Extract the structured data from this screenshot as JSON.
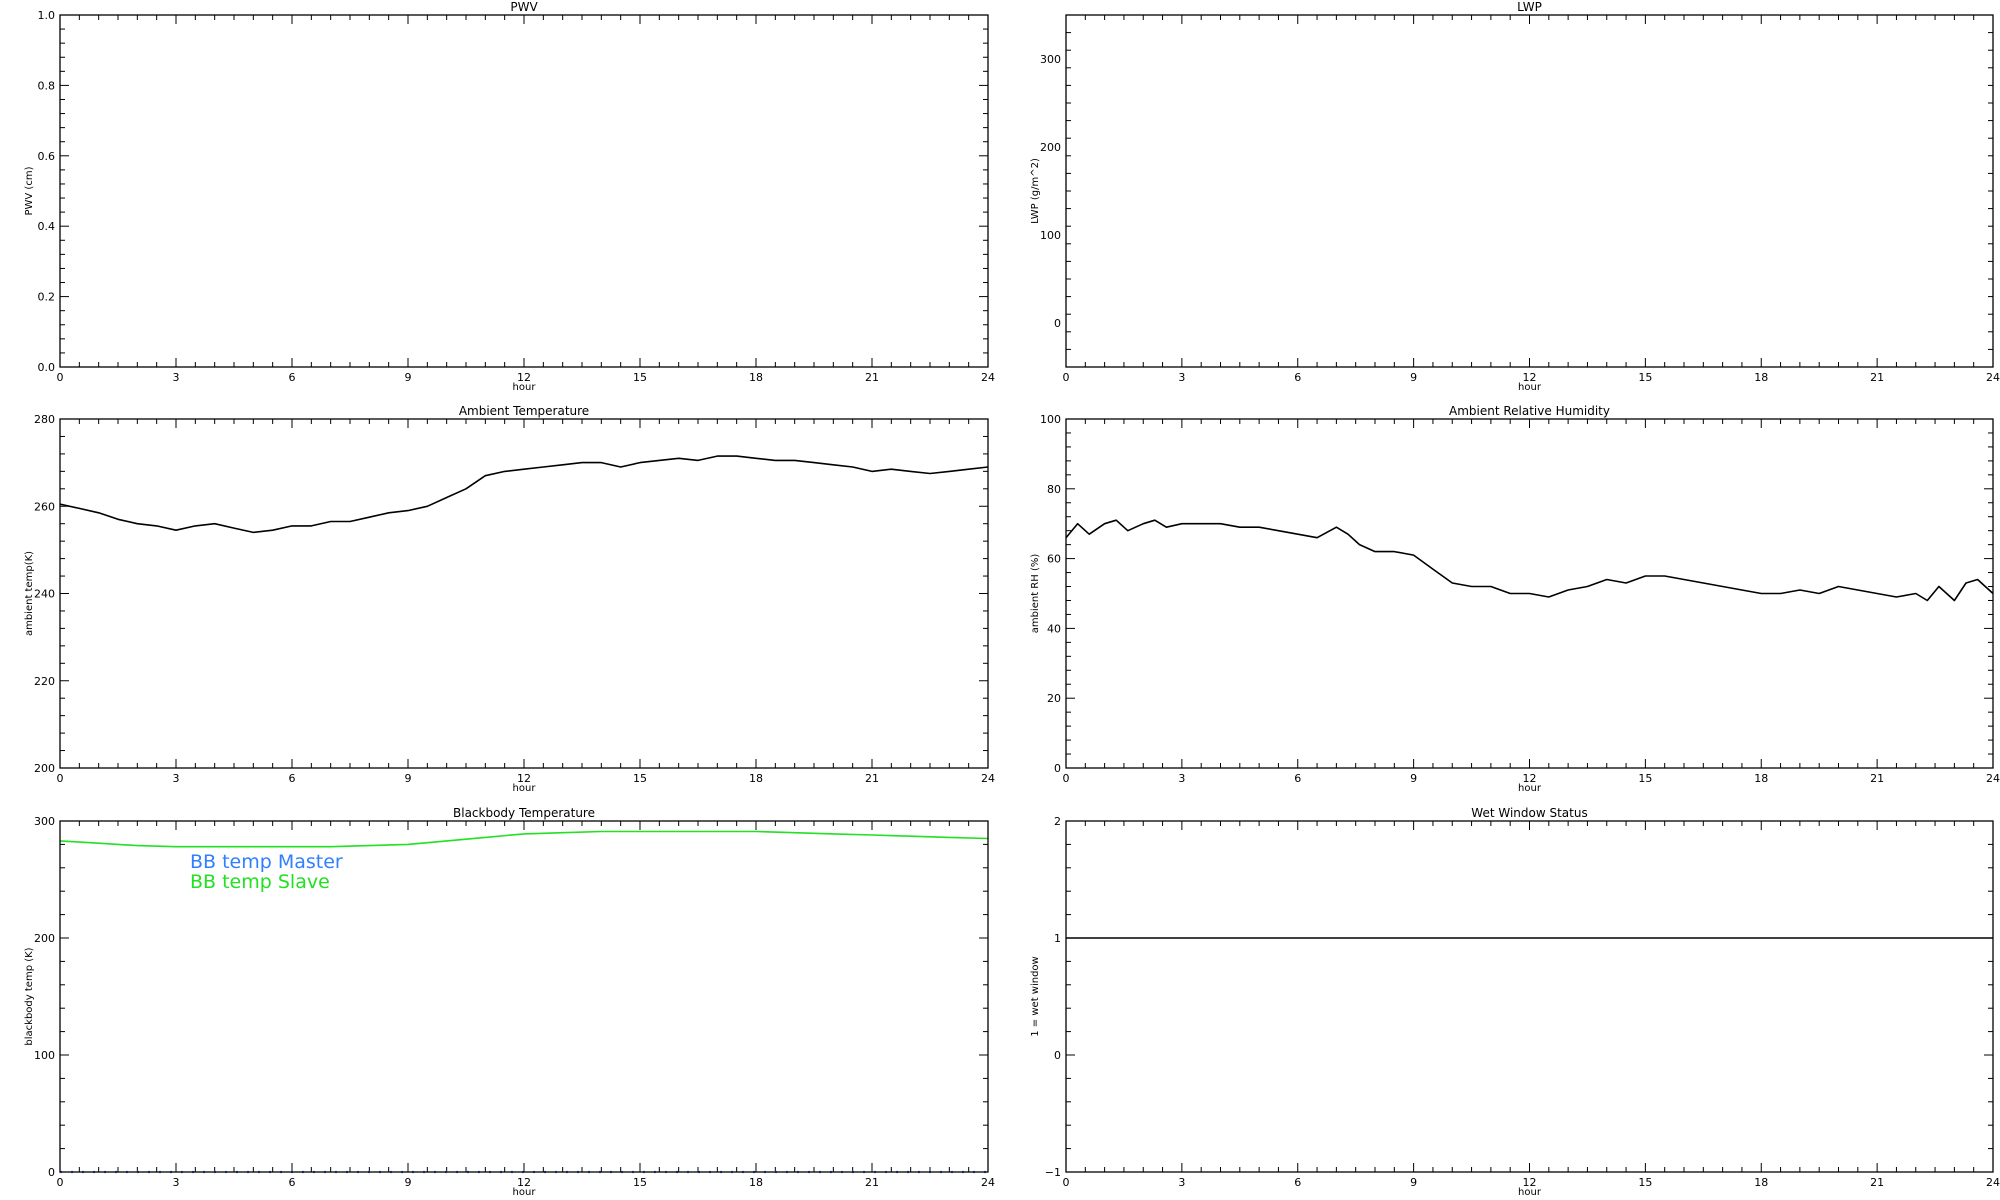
{
  "chart_data": [
    {
      "id": "pwv",
      "type": "line",
      "title": "PWV",
      "xlabel": "hour",
      "ylabel": "PWV (cm)",
      "xlim": [
        0,
        24
      ],
      "ylim": [
        0.0,
        1.0
      ],
      "xticks": [
        0,
        3,
        6,
        9,
        12,
        15,
        18,
        21,
        24
      ],
      "yticks": [
        0.0,
        0.2,
        0.4,
        0.6,
        0.8,
        1.0
      ],
      "ytick_labels": [
        "0.0",
        "0.2",
        "0.4",
        "0.6",
        "0.8",
        "1.0"
      ],
      "series": []
    },
    {
      "id": "lwp",
      "type": "line",
      "title": "LWP",
      "xlabel": "hour",
      "ylabel": "LWP (g/m^2)",
      "xlim": [
        0,
        24
      ],
      "ylim": [
        -50,
        350
      ],
      "xticks": [
        0,
        3,
        6,
        9,
        12,
        15,
        18,
        21,
        24
      ],
      "yticks": [
        0,
        100,
        200,
        300
      ],
      "ytick_labels": [
        "0",
        "100",
        "200",
        "300"
      ],
      "series": []
    },
    {
      "id": "ambient_temp",
      "type": "line",
      "title": "Ambient Temperature",
      "xlabel": "hour",
      "ylabel": "ambient temp(K)",
      "xlim": [
        0,
        24
      ],
      "ylim": [
        200,
        280
      ],
      "xticks": [
        0,
        3,
        6,
        9,
        12,
        15,
        18,
        21,
        24
      ],
      "yticks": [
        200,
        220,
        240,
        260,
        280
      ],
      "ytick_labels": [
        "200",
        "220",
        "240",
        "260",
        "280"
      ],
      "series": [
        {
          "color": "#000000",
          "x": [
            0,
            0.5,
            1,
            1.5,
            2,
            2.5,
            3,
            3.5,
            4,
            4.5,
            5,
            5.5,
            6,
            6.5,
            7,
            7.5,
            8,
            8.5,
            9,
            9.5,
            10,
            10.5,
            11,
            11.5,
            12,
            12.5,
            13,
            13.5,
            14,
            14.5,
            15,
            15.5,
            16,
            16.5,
            17,
            17.5,
            18,
            18.5,
            19,
            19.5,
            20,
            20.5,
            21,
            21.5,
            22,
            22.5,
            23,
            23.5,
            24
          ],
          "y": [
            260.5,
            259.5,
            258.5,
            257,
            256,
            255.5,
            254.5,
            255.5,
            256,
            255,
            254,
            254.5,
            255.5,
            255.5,
            256.5,
            256.5,
            257.5,
            258.5,
            259,
            260,
            262,
            264,
            267,
            268,
            268.5,
            269,
            269.5,
            270,
            270,
            269,
            270,
            270.5,
            271,
            270.5,
            271.5,
            271.5,
            271,
            270.5,
            270.5,
            270,
            269.5,
            269,
            268,
            268.5,
            268,
            267.5,
            268,
            268.5,
            269
          ]
        }
      ]
    },
    {
      "id": "ambient_rh",
      "type": "line",
      "title": "Ambient Relative Humidity",
      "xlabel": "hour",
      "ylabel": "ambient RH (%)",
      "xlim": [
        0,
        24
      ],
      "ylim": [
        0,
        100
      ],
      "xticks": [
        0,
        3,
        6,
        9,
        12,
        15,
        18,
        21,
        24
      ],
      "yticks": [
        0,
        20,
        40,
        60,
        80,
        100
      ],
      "ytick_labels": [
        "0",
        "20",
        "40",
        "60",
        "80",
        "100"
      ],
      "series": [
        {
          "color": "#000000",
          "x": [
            0,
            0.3,
            0.6,
            1,
            1.3,
            1.6,
            2,
            2.3,
            2.6,
            3,
            3.5,
            4,
            4.5,
            5,
            5.5,
            6,
            6.5,
            7,
            7.3,
            7.6,
            8,
            8.5,
            9,
            9.5,
            10,
            10.5,
            11,
            11.5,
            12,
            12.5,
            13,
            13.5,
            14,
            14.5,
            15,
            15.5,
            16,
            16.5,
            17,
            17.5,
            18,
            18.5,
            19,
            19.5,
            20,
            20.5,
            21,
            21.5,
            22,
            22.3,
            22.6,
            23,
            23.3,
            23.6,
            24
          ],
          "y": [
            66,
            70,
            67,
            70,
            71,
            68,
            70,
            71,
            69,
            70,
            70,
            70,
            69,
            69,
            68,
            67,
            66,
            69,
            67,
            64,
            62,
            62,
            61,
            57,
            53,
            52,
            52,
            50,
            50,
            49,
            51,
            52,
            54,
            53,
            55,
            55,
            54,
            53,
            52,
            51,
            50,
            50,
            51,
            50,
            52,
            51,
            50,
            49,
            50,
            48,
            52,
            48,
            53,
            54,
            50
          ]
        }
      ]
    },
    {
      "id": "blackbody_temp",
      "type": "line",
      "title": "Blackbody Temperature",
      "xlabel": "hour",
      "ylabel": "blackbody temp (K)",
      "xlim": [
        0,
        24
      ],
      "ylim": [
        0,
        300
      ],
      "xticks": [
        0,
        3,
        6,
        9,
        12,
        15,
        18,
        21,
        24
      ],
      "yticks": [
        0,
        100,
        200,
        300
      ],
      "ytick_labels": [
        "0",
        "100",
        "200",
        "300"
      ],
      "legend": [
        "BB temp Master",
        "BB temp Slave"
      ],
      "series": [
        {
          "name": "BB temp Master",
          "color": "#2f7fff",
          "style": "dotted",
          "x": [
            0,
            24
          ],
          "y": [
            0,
            0
          ]
        },
        {
          "name": "BB temp Slave",
          "color": "#22e022",
          "x": [
            0,
            1,
            2,
            3,
            4,
            5,
            6,
            7,
            8,
            9,
            10,
            11,
            12,
            13,
            14,
            15,
            16,
            17,
            18,
            19,
            20,
            21,
            22,
            23,
            24
          ],
          "y": [
            283,
            281,
            279,
            278,
            278,
            278,
            278,
            278,
            279,
            280,
            283,
            286,
            289,
            290,
            291,
            291,
            291,
            291,
            291,
            290,
            289,
            288,
            287,
            286,
            285
          ]
        }
      ]
    },
    {
      "id": "wet_window",
      "type": "line",
      "title": "Wet Window Status",
      "xlabel": "hour",
      "ylabel": "1 = wet window",
      "xlim": [
        0,
        24
      ],
      "ylim": [
        -1,
        2
      ],
      "xticks": [
        0,
        3,
        6,
        9,
        12,
        15,
        18,
        21,
        24
      ],
      "yticks": [
        -1,
        0,
        1,
        2
      ],
      "ytick_labels": [
        "−1",
        "0",
        "1",
        "2"
      ],
      "series": [
        {
          "color": "#000000",
          "x": [
            0,
            24
          ],
          "y": [
            1,
            1
          ]
        }
      ]
    }
  ]
}
